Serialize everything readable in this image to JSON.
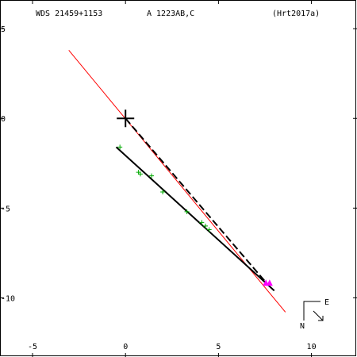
{
  "header": {
    "designation": "WDS 21459+1153",
    "components": "A  1223AB,C",
    "reference": "(Hrt2017a)"
  },
  "compass": {
    "east": "E",
    "north": "N"
  },
  "colors": {
    "frame": "#000000",
    "primary_marker": "#000000",
    "observations": "#00aa00",
    "orbit_line": "#000000",
    "node_line": "#ff0000",
    "predicted_point": "#ff00ff"
  },
  "chart_data": {
    "type": "scatter",
    "title": "",
    "xlabel": "",
    "ylabel": "",
    "xlim": [
      -6.75,
      12.45
    ],
    "ylim": [
      -13.3,
      6.6
    ],
    "x_ticks": [
      -5,
      0,
      5,
      10
    ],
    "y_ticks": [
      5,
      0,
      -5,
      -10
    ],
    "x_tick_labels": [
      "-5",
      "0",
      "5",
      "10"
    ],
    "y_tick_labels": [
      "5",
      "0",
      "-5",
      "-10"
    ],
    "grid": false,
    "primary": {
      "x": 0,
      "y": 0
    },
    "observations": [
      {
        "x": -0.3,
        "y": -1.6
      },
      {
        "x": 0.7,
        "y": -3.0
      },
      {
        "x": 0.8,
        "y": -3.1
      },
      {
        "x": 1.4,
        "y": -3.2
      },
      {
        "x": 2.0,
        "y": -4.1
      },
      {
        "x": 3.3,
        "y": -5.2
      },
      {
        "x": 4.1,
        "y": -5.8
      },
      {
        "x": 4.3,
        "y": -6.0
      },
      {
        "x": 4.5,
        "y": -6.2
      }
    ],
    "fit_line": {
      "from": {
        "x": -0.5,
        "y": -1.6
      },
      "to": {
        "x": 8.0,
        "y": -9.6
      }
    },
    "node_line": {
      "from": {
        "x": -3.05,
        "y": 3.8
      },
      "to": {
        "x": 8.6,
        "y": -10.8
      }
    },
    "dashed_segments": [
      {
        "from": {
          "x": 0,
          "y": 0
        },
        "to": {
          "x": 7.6,
          "y": -9.2
        }
      }
    ],
    "predicted": [
      {
        "x": 7.55,
        "y": -9.2
      },
      {
        "x": 7.75,
        "y": -9.2
      }
    ]
  }
}
